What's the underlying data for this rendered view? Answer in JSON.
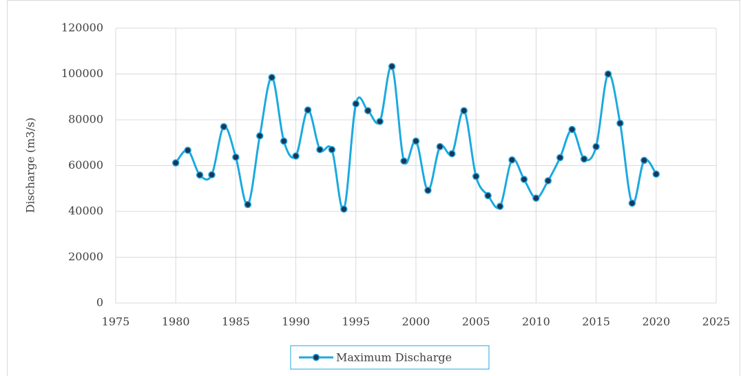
{
  "chart_data": {
    "type": "line",
    "y_label": "Discharge (m3/s)",
    "x": [
      1980,
      1981,
      1982,
      1983,
      1984,
      1985,
      1986,
      1987,
      1988,
      1989,
      1990,
      1991,
      1992,
      1993,
      1994,
      1995,
      1996,
      1997,
      1998,
      1999,
      2000,
      2001,
      2002,
      2003,
      2004,
      2005,
      2006,
      2007,
      2008,
      2009,
      2010,
      2011,
      2012,
      2013,
      2014,
      2015,
      2016,
      2017,
      2018,
      2019,
      2020
    ],
    "series": [
      {
        "name": "Maximum Discharge",
        "color": "#1ba9e0",
        "marker_color": "#1f3556",
        "values": [
          61200,
          66700,
          55900,
          56000,
          77000,
          63700,
          43000,
          73000,
          98500,
          70700,
          64200,
          84300,
          67000,
          67000,
          41000,
          87000,
          84000,
          79300,
          103300,
          62000,
          70700,
          49200,
          68300,
          65200,
          84000,
          55300,
          46900,
          42200,
          62500,
          54000,
          45800,
          53400,
          63500,
          75800,
          62900,
          68300,
          100000,
          78500,
          43600,
          62300,
          56300
        ]
      }
    ],
    "xlim": [
      1975,
      2025
    ],
    "xticks": [
      1975,
      1980,
      1985,
      1990,
      1995,
      2000,
      2005,
      2010,
      2015,
      2020,
      2025
    ],
    "ylim": [
      0,
      120000
    ],
    "yticks": [
      0,
      20000,
      40000,
      60000,
      80000,
      100000,
      120000
    ],
    "grid": true,
    "smooth": true,
    "legend": "bottom"
  }
}
